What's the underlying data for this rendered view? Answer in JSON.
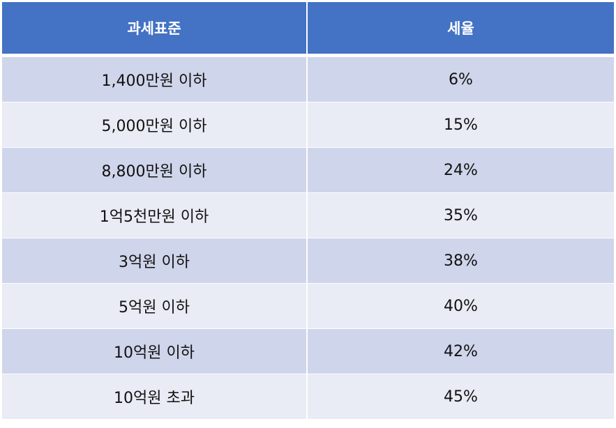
{
  "table": {
    "headers": [
      "과세표준",
      "세율"
    ],
    "rows": [
      {
        "bracket": "1,400만원 이하",
        "rate": "6%"
      },
      {
        "bracket": "5,000만원 이하",
        "rate": "15%"
      },
      {
        "bracket": "8,800만원 이하",
        "rate": "24%"
      },
      {
        "bracket": "1억5천만원 이하",
        "rate": "35%"
      },
      {
        "bracket": "3억원 이하",
        "rate": "38%"
      },
      {
        "bracket": "5억원 이하",
        "rate": "40%"
      },
      {
        "bracket": "10억원 이하",
        "rate": "42%"
      },
      {
        "bracket": "10억원 초과",
        "rate": "45%"
      }
    ]
  },
  "colors": {
    "header_bg": "#4472c4",
    "row_odd": "#cfd5ea",
    "row_even": "#e9ebf5"
  }
}
